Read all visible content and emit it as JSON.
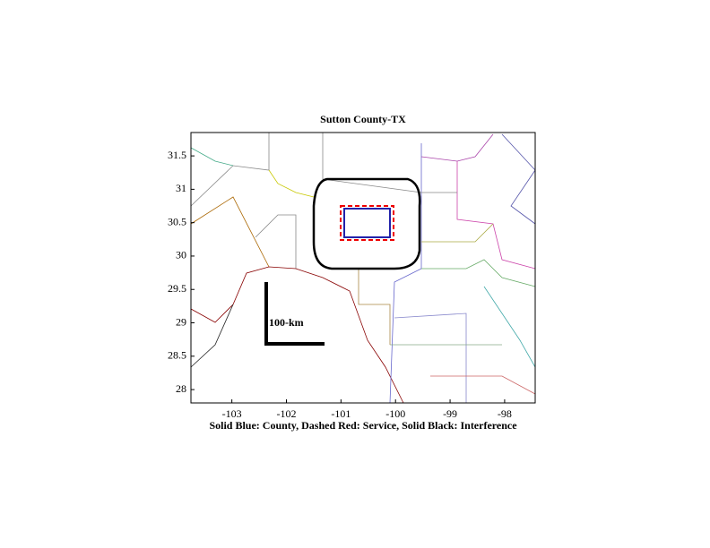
{
  "map": {
    "title": "Sutton County-TX",
    "caption": "Solid Blue: County, Dashed Red: Service, Solid Black: Interference",
    "scale_label": "100-km",
    "xlim": [
      -103.75,
      -97.44
    ],
    "ylim": [
      27.8,
      31.85
    ],
    "xticks": [
      -103,
      -102,
      -101,
      -100,
      -99,
      -98
    ],
    "yticks": [
      28,
      28.5,
      29,
      29.5,
      30,
      30.5,
      31,
      31.5
    ]
  }
}
